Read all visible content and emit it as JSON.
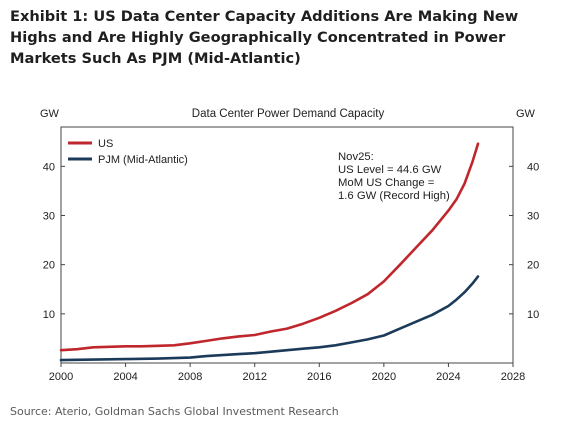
{
  "header": {
    "exhibit_title": "Exhibit 1: US Data Center Capacity Additions Are Making New Highs and Are Highly Geographically Concentrated in Power Markets Such As PJM (Mid-Atlantic)"
  },
  "footer": {
    "source": "Source: Aterio, Goldman Sachs Global Investment Research"
  },
  "chart_data": {
    "type": "line",
    "title": "Data Center Power Demand Capacity",
    "ylabel_left": "GW",
    "ylabel_right": "GW",
    "xlim": [
      2000,
      2028
    ],
    "ylim": [
      0,
      48
    ],
    "x_ticks": [
      2000,
      2004,
      2008,
      2012,
      2016,
      2020,
      2024,
      2028
    ],
    "y_ticks": [
      10,
      20,
      30,
      40
    ],
    "grid": false,
    "legend_position": "top-left",
    "annotation": [
      "Nov25:",
      "US Level = 44.6 GW",
      "MoM US Change =",
      "1.6 GW (Record High)"
    ],
    "series": [
      {
        "name": "US",
        "color": "#c0272d",
        "points": [
          [
            2000,
            2.6
          ],
          [
            2001,
            2.8
          ],
          [
            2002,
            3.2
          ],
          [
            2003,
            3.3
          ],
          [
            2004,
            3.4
          ],
          [
            2005,
            3.4
          ],
          [
            2006,
            3.5
          ],
          [
            2007,
            3.6
          ],
          [
            2008,
            4.0
          ],
          [
            2009,
            4.5
          ],
          [
            2010,
            5.0
          ],
          [
            2011,
            5.4
          ],
          [
            2012,
            5.7
          ],
          [
            2013,
            6.4
          ],
          [
            2014,
            7.0
          ],
          [
            2015,
            8.0
          ],
          [
            2016,
            9.2
          ],
          [
            2017,
            10.6
          ],
          [
            2018,
            12.2
          ],
          [
            2019,
            14.0
          ],
          [
            2020,
            16.6
          ],
          [
            2021,
            20.0
          ],
          [
            2022,
            23.5
          ],
          [
            2023,
            27.0
          ],
          [
            2024,
            31.0
          ],
          [
            2024.5,
            33.3
          ],
          [
            2025,
            36.5
          ],
          [
            2025.5,
            41.0
          ],
          [
            2025.83,
            44.6
          ]
        ]
      },
      {
        "name": "PJM (Mid-Atlantic)",
        "color": "#1c3b5a",
        "points": [
          [
            2000,
            0.6
          ],
          [
            2002,
            0.7
          ],
          [
            2004,
            0.8
          ],
          [
            2006,
            0.9
          ],
          [
            2008,
            1.1
          ],
          [
            2009,
            1.4
          ],
          [
            2010,
            1.6
          ],
          [
            2011,
            1.8
          ],
          [
            2012,
            2.0
          ],
          [
            2013,
            2.3
          ],
          [
            2014,
            2.6
          ],
          [
            2015,
            2.9
          ],
          [
            2016,
            3.2
          ],
          [
            2017,
            3.6
          ],
          [
            2018,
            4.2
          ],
          [
            2019,
            4.8
          ],
          [
            2020,
            5.6
          ],
          [
            2021,
            7.0
          ],
          [
            2022,
            8.4
          ],
          [
            2023,
            9.8
          ],
          [
            2024,
            11.6
          ],
          [
            2024.5,
            12.9
          ],
          [
            2025,
            14.4
          ],
          [
            2025.5,
            16.2
          ],
          [
            2025.83,
            17.6
          ]
        ]
      }
    ]
  }
}
